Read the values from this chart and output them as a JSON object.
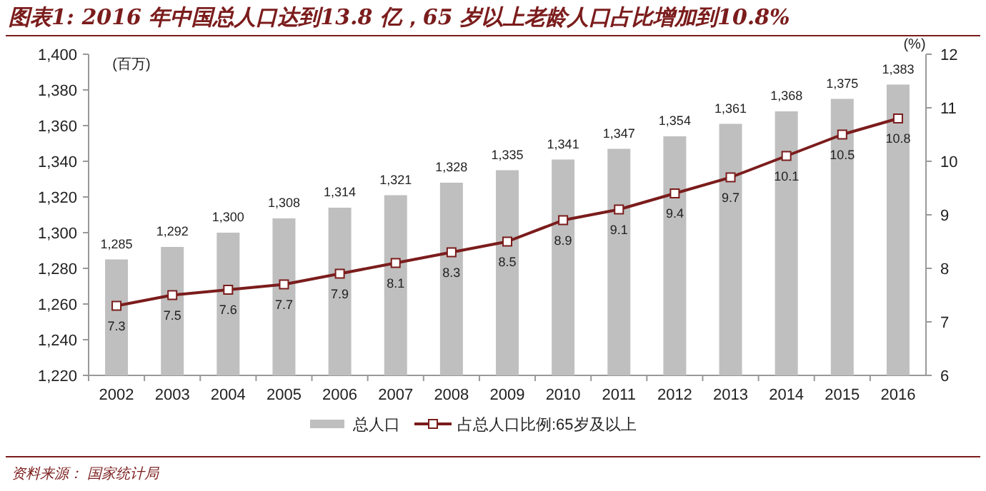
{
  "chart_data": {
    "type": "bar",
    "title": "图表1: 2016 年中国总人口达到13.8 亿，65 岁以上老龄人口占比增加到10.8%",
    "ylabel": "(百万)",
    "y2label": "(%)",
    "categories": [
      "2002",
      "2003",
      "2004",
      "2005",
      "2006",
      "2007",
      "2008",
      "2009",
      "2010",
      "2011",
      "2012",
      "2013",
      "2014",
      "2015",
      "2016"
    ],
    "series": [
      {
        "name": "总人口",
        "color": "#bfbfbf",
        "values": [
          1285,
          1292,
          1300,
          1308,
          1314,
          1321,
          1328,
          1335,
          1341,
          1347,
          1354,
          1361,
          1368,
          1375,
          1383
        ],
        "value_labels": [
          "1,285",
          "1,292",
          "1,300",
          "1,308",
          "1,314",
          "1,321",
          "1,328",
          "1,335",
          "1,341",
          "1,347",
          "1,354",
          "1,361",
          "1,368",
          "1,375",
          "1,383"
        ]
      },
      {
        "name": "占总人口比例:65岁及以上",
        "type": "line",
        "axis": "y2",
        "marker": "square",
        "color": "#7b1c1c",
        "values": [
          7.3,
          7.5,
          7.6,
          7.7,
          7.9,
          8.1,
          8.3,
          8.5,
          8.9,
          9.1,
          9.4,
          9.7,
          10.1,
          10.5,
          10.8
        ],
        "value_labels": [
          "7.3",
          "7.5",
          "7.6",
          "7.7",
          "7.9",
          "8.1",
          "8.3",
          "8.5",
          "8.9",
          "9.1",
          "9.4",
          "9.7",
          "10.1",
          "10.5",
          "10.8"
        ]
      }
    ],
    "ylim": [
      1220,
      1400
    ],
    "yticks": [
      {
        "value": 1220,
        "label": "1,220"
      },
      {
        "value": 1240,
        "label": "1,240"
      },
      {
        "value": 1260,
        "label": "1,260"
      },
      {
        "value": 1280,
        "label": "1,280"
      },
      {
        "value": 1300,
        "label": "1,300"
      },
      {
        "value": 1320,
        "label": "1,320"
      },
      {
        "value": 1340,
        "label": "1,340"
      },
      {
        "value": 1360,
        "label": "1,360"
      },
      {
        "value": 1380,
        "label": "1,380"
      },
      {
        "value": 1400,
        "label": "1,400"
      }
    ],
    "y2lim": [
      6,
      12
    ],
    "y2ticks": [
      6,
      7,
      8,
      9,
      10,
      11,
      12
    ],
    "legend": "bottom",
    "annotations": [
      "资料来源： 国家统计局"
    ]
  }
}
